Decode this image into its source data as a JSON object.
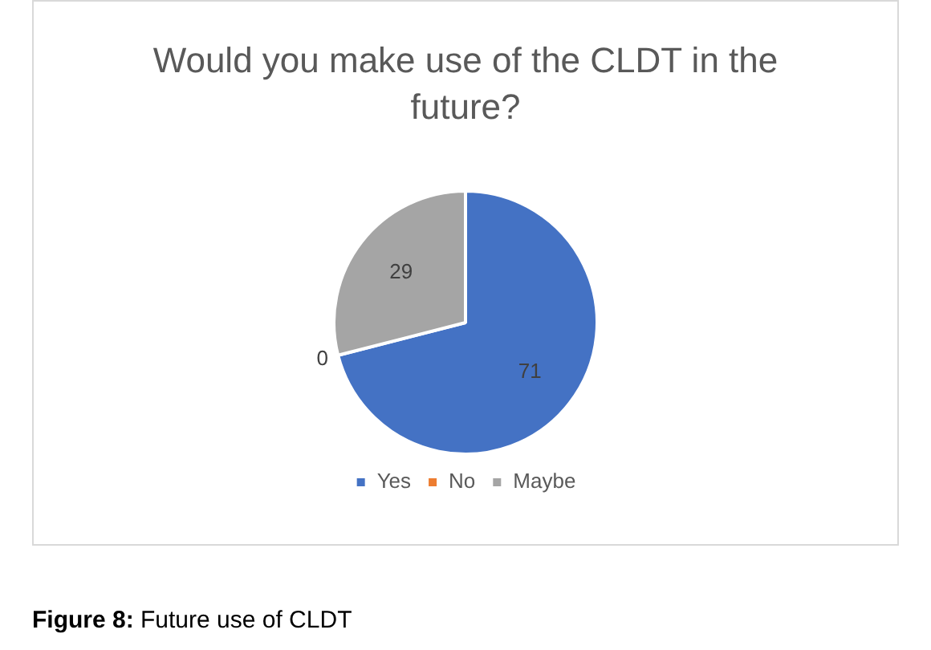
{
  "chart_data": {
    "type": "pie",
    "title": "Would you make use of the CLDT in the future?",
    "categories": [
      "Yes",
      "No",
      "Maybe"
    ],
    "values": [
      71,
      0,
      29
    ],
    "colors": [
      "#4472c4",
      "#ed7d31",
      "#a5a5a5"
    ],
    "value_labels": [
      "71",
      "0",
      "29"
    ],
    "legend": "bottom",
    "annotations": [
      "Figure 8: Future use of CLDT"
    ]
  }
}
